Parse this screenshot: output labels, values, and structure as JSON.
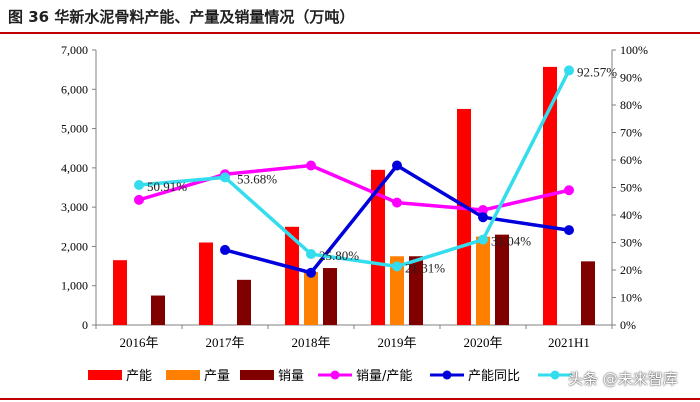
{
  "title": "图 36  华新水泥骨料产能、产量及销量情况（万吨）",
  "chart_data": {
    "type": "bar",
    "categories": [
      "2016年",
      "2017年",
      "2018年",
      "2019年",
      "2020年",
      "2021H1"
    ],
    "y_left": {
      "min": 0,
      "max": 7000,
      "step": 1000,
      "tick_labels": [
        "0",
        "1,000",
        "2,000",
        "3,000",
        "4,000",
        "5,000",
        "6,000",
        "7,000"
      ]
    },
    "y_right": {
      "min": 0,
      "max": 100,
      "step": 10,
      "tick_labels": [
        "0%",
        "10%",
        "20%",
        "30%",
        "40%",
        "50%",
        "60%",
        "70%",
        "80%",
        "90%",
        "100%"
      ]
    },
    "bar_series": [
      {
        "name": "产能",
        "color": "#ff0000",
        "values": [
          1650,
          2100,
          2500,
          3950,
          5500,
          6570
        ]
      },
      {
        "name": "产量",
        "color": "#ff8000",
        "values": [
          null,
          null,
          1350,
          1750,
          2250,
          null
        ]
      },
      {
        "name": "销量",
        "color": "#800000",
        "values": [
          750,
          1150,
          1450,
          1750,
          2300,
          1620
        ]
      }
    ],
    "line_series": [
      {
        "name": "销量/产能",
        "color": "#ff00ff",
        "values": [
          45.5,
          54.8,
          58,
          44.5,
          41.8,
          49
        ]
      },
      {
        "name": "产能同比",
        "color": "#0000dd",
        "values": [
          null,
          27.3,
          19,
          58,
          39.2,
          34.5
        ]
      },
      {
        "name": "",
        "color": "#33ddee",
        "values": [
          50.91,
          53.68,
          25.8,
          21.31,
          31.04,
          92.57
        ]
      }
    ],
    "annotations": [
      {
        "text": "50.91%",
        "category_index": 0,
        "series": 2
      },
      {
        "text": "53.68%",
        "category_index": 1,
        "series": 2
      },
      {
        "text": "25.80%",
        "category_index": 2,
        "series": 2
      },
      {
        "text": "21.31%",
        "category_index": 3,
        "series": 2
      },
      {
        "text": "31.04%",
        "category_index": 4,
        "series": 2
      },
      {
        "text": "92.57%",
        "category_index": 5,
        "series": 2
      }
    ],
    "legend": {
      "position": "bottom",
      "items": [
        {
          "label": "产能",
          "kind": "bar",
          "color": "#ff0000"
        },
        {
          "label": "产量",
          "kind": "bar",
          "color": "#ff8000"
        },
        {
          "label": "销量",
          "kind": "bar",
          "color": "#800000"
        },
        {
          "label": "销量/产能",
          "kind": "line",
          "color": "#ff00ff"
        },
        {
          "label": "产能同比",
          "kind": "line",
          "color": "#0000dd"
        },
        {
          "label": "",
          "kind": "line",
          "color": "#33ddee"
        }
      ]
    },
    "grid": false
  },
  "watermark": {
    "text": "头条 @未来智库"
  }
}
